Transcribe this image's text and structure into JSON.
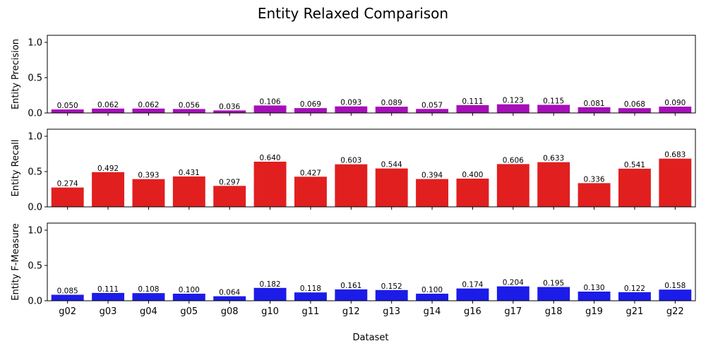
{
  "chart_data": {
    "type": "bar",
    "title": "Entity Relaxed Comparison",
    "xlabel": "Dataset",
    "categories": [
      "g02",
      "g03",
      "g04",
      "g05",
      "g08",
      "g10",
      "g11",
      "g12",
      "g13",
      "g14",
      "g16",
      "g17",
      "g18",
      "g19",
      "g21",
      "g22"
    ],
    "ylim": [
      0,
      1.1
    ],
    "yticks": [
      0.0,
      0.5,
      1.0
    ],
    "subplots": [
      {
        "ylabel": "Entity Precision",
        "color": "#a60fb8",
        "values": [
          0.05,
          0.062,
          0.062,
          0.056,
          0.036,
          0.106,
          0.069,
          0.093,
          0.089,
          0.057,
          0.111,
          0.123,
          0.115,
          0.081,
          0.068,
          0.09
        ],
        "labels": [
          "0.050",
          "0.062",
          "0.062",
          "0.056",
          "0.036",
          "0.106",
          "0.069",
          "0.093",
          "0.089",
          "0.057",
          "0.111",
          "0.123",
          "0.115",
          "0.081",
          "0.068",
          "0.090"
        ]
      },
      {
        "ylabel": "Entity Recall",
        "color": "#e11f1f",
        "values": [
          0.274,
          0.492,
          0.393,
          0.431,
          0.297,
          0.64,
          0.427,
          0.603,
          0.544,
          0.394,
          0.4,
          0.606,
          0.633,
          0.336,
          0.541,
          0.683
        ],
        "labels": [
          "0.274",
          "0.492",
          "0.393",
          "0.431",
          "0.297",
          "0.640",
          "0.427",
          "0.603",
          "0.544",
          "0.394",
          "0.400",
          "0.606",
          "0.633",
          "0.336",
          "0.541",
          "0.683"
        ]
      },
      {
        "ylabel": "Entity F-Measure",
        "color": "#1c1ce8",
        "values": [
          0.085,
          0.111,
          0.108,
          0.1,
          0.064,
          0.182,
          0.118,
          0.161,
          0.152,
          0.1,
          0.174,
          0.204,
          0.195,
          0.13,
          0.122,
          0.158
        ],
        "labels": [
          "0.085",
          "0.111",
          "0.108",
          "0.100",
          "0.064",
          "0.182",
          "0.118",
          "0.161",
          "0.152",
          "0.100",
          "0.174",
          "0.204",
          "0.195",
          "0.130",
          "0.122",
          "0.158"
        ]
      }
    ]
  }
}
